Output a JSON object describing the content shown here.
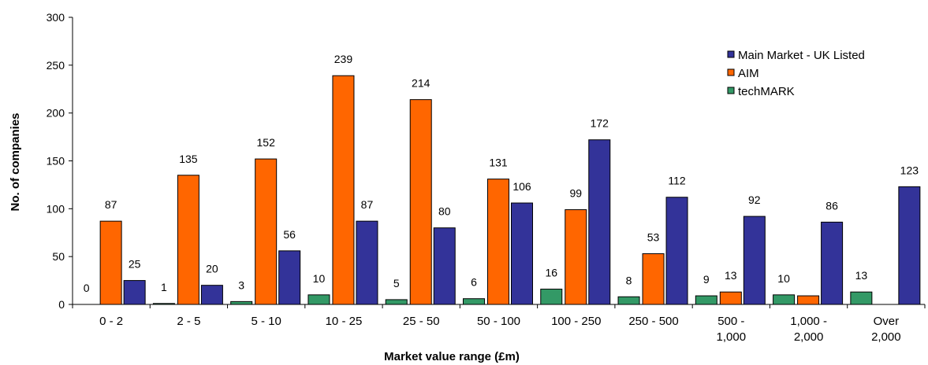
{
  "chart_data": {
    "type": "bar",
    "xlabel": "Market value range (£m)",
    "ylabel": "No. of companies",
    "ylim": [
      0,
      300
    ],
    "yticks": [
      "0",
      "50",
      "100",
      "150",
      "200",
      "250",
      "300"
    ],
    "grid": false,
    "legend_position": "top-right",
    "categories": [
      [
        "0 - 2"
      ],
      [
        "2 - 5"
      ],
      [
        "5 - 10"
      ],
      [
        "10 - 25"
      ],
      [
        "25 - 50"
      ],
      [
        "50 - 100"
      ],
      [
        "100 - 250"
      ],
      [
        "250 - 500"
      ],
      [
        "500 -",
        "1,000"
      ],
      [
        "1,000 -",
        "2,000"
      ],
      [
        "Over",
        "2,000"
      ]
    ],
    "series": [
      {
        "name": "techMARK",
        "color": "#339966",
        "values": [
          0,
          1,
          3,
          10,
          5,
          6,
          16,
          8,
          9,
          10,
          13
        ],
        "labels": [
          "0",
          "1",
          "3",
          "10",
          "5",
          "6",
          "16",
          "8",
          "9",
          "10",
          "13"
        ]
      },
      {
        "name": "AIM",
        "color": "#ff6600",
        "values": [
          87,
          135,
          152,
          239,
          214,
          131,
          99,
          53,
          13,
          9,
          null
        ],
        "labels": [
          "87",
          "135",
          "152",
          "239",
          "214",
          "131",
          "99",
          "53",
          "13",
          "",
          ""
        ]
      },
      {
        "name": "Main Market - UK Listed",
        "color": "#333399",
        "values": [
          25,
          20,
          56,
          87,
          80,
          106,
          172,
          112,
          92,
          86,
          123
        ],
        "labels": [
          "25",
          "20",
          "56",
          "87",
          "80",
          "106",
          "172",
          "112",
          "92",
          "86",
          "123"
        ]
      }
    ],
    "legend_order": [
      "Main Market - UK Listed",
      "AIM",
      "techMARK"
    ]
  }
}
